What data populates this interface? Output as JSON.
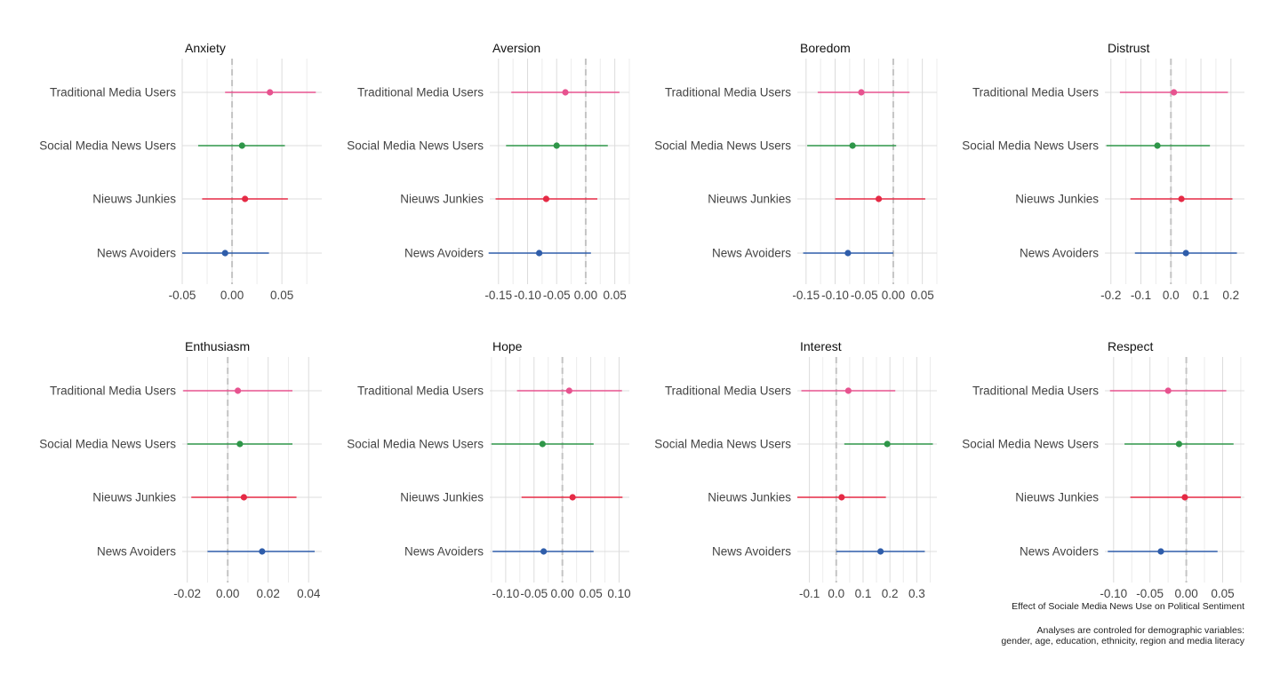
{
  "chart_data": [
    {
      "type": "forest",
      "title": "Anxiety",
      "categories": [
        "Traditional Media Users",
        "Social Media News Users",
        "Nieuws Junkies",
        "News Avoiders"
      ],
      "xlim": [
        -0.05,
        0.09
      ],
      "ticks": [
        -0.05,
        0.0,
        0.05
      ],
      "tick_labels": [
        "-0.05",
        "0.00",
        "0.05"
      ],
      "reference_line": 0,
      "points": [
        {
          "group": "Traditional Media Users",
          "estimate": 0.038,
          "lower": -0.007,
          "upper": 0.084
        },
        {
          "group": "Social Media News Users",
          "estimate": 0.01,
          "lower": -0.034,
          "upper": 0.053
        },
        {
          "group": "Nieuws Junkies",
          "estimate": 0.013,
          "lower": -0.03,
          "upper": 0.056
        },
        {
          "group": "News Avoiders",
          "estimate": -0.007,
          "lower": -0.05,
          "upper": 0.037
        }
      ]
    },
    {
      "type": "forest",
      "title": "Aversion",
      "categories": [
        "Traditional Media Users",
        "Social Media News Users",
        "Nieuws Junkies",
        "News Avoiders"
      ],
      "xlim": [
        -0.165,
        0.075
      ],
      "ticks": [
        -0.15,
        -0.1,
        -0.05,
        0.0,
        0.05
      ],
      "tick_labels": [
        "-0.15",
        "-0.10",
        "-0.05",
        "0.00",
        "0.05"
      ],
      "reference_line": 0,
      "points": [
        {
          "group": "Traditional Media Users",
          "estimate": -0.035,
          "lower": -0.128,
          "upper": 0.058
        },
        {
          "group": "Social Media News Users",
          "estimate": -0.05,
          "lower": -0.137,
          "upper": 0.038
        },
        {
          "group": "Nieuws Junkies",
          "estimate": -0.068,
          "lower": -0.155,
          "upper": 0.02
        },
        {
          "group": "News Avoiders",
          "estimate": -0.08,
          "lower": -0.167,
          "upper": 0.009
        }
      ]
    },
    {
      "type": "forest",
      "title": "Boredom",
      "categories": [
        "Traditional Media Users",
        "Social Media News Users",
        "Nieuws Junkies",
        "News Avoiders"
      ],
      "xlim": [
        -0.165,
        0.075
      ],
      "ticks": [
        -0.15,
        -0.1,
        -0.05,
        0.0,
        0.05
      ],
      "tick_labels": [
        "-0.15",
        "-0.10",
        "-0.05",
        "0.00",
        "0.05"
      ],
      "reference_line": 0,
      "points": [
        {
          "group": "Traditional Media Users",
          "estimate": -0.055,
          "lower": -0.13,
          "upper": 0.028
        },
        {
          "group": "Social Media News Users",
          "estimate": -0.07,
          "lower": -0.148,
          "upper": 0.005
        },
        {
          "group": "Nieuws Junkies",
          "estimate": -0.025,
          "lower": -0.1,
          "upper": 0.055
        },
        {
          "group": "News Avoiders",
          "estimate": -0.078,
          "lower": -0.155,
          "upper": 0.0
        }
      ]
    },
    {
      "type": "forest",
      "title": "Distrust",
      "categories": [
        "Traditional Media Users",
        "Social Media News Users",
        "Nieuws Junkies",
        "News Avoiders"
      ],
      "xlim": [
        -0.22,
        0.245
      ],
      "ticks": [
        -0.2,
        -0.1,
        0.0,
        0.1,
        0.2
      ],
      "tick_labels": [
        "-0.2",
        "-0.1",
        "0.0",
        "0.1",
        "0.2"
      ],
      "reference_line": 0,
      "points": [
        {
          "group": "Traditional Media Users",
          "estimate": 0.01,
          "lower": -0.17,
          "upper": 0.19
        },
        {
          "group": "Social Media News Users",
          "estimate": -0.045,
          "lower": -0.215,
          "upper": 0.13
        },
        {
          "group": "Nieuws Junkies",
          "estimate": 0.035,
          "lower": -0.135,
          "upper": 0.205
        },
        {
          "group": "News Avoiders",
          "estimate": 0.05,
          "lower": -0.12,
          "upper": 0.22
        }
      ]
    },
    {
      "type": "forest",
      "title": "Enthusiasm",
      "categories": [
        "Traditional Media Users",
        "Social Media News Users",
        "Nieuws Junkies",
        "News Avoiders"
      ],
      "xlim": [
        -0.0225,
        0.0465
      ],
      "ticks": [
        -0.02,
        0.0,
        0.02,
        0.04
      ],
      "tick_labels": [
        "-0.02",
        "0.00",
        "0.02",
        "0.04"
      ],
      "reference_line": 0,
      "points": [
        {
          "group": "Traditional Media Users",
          "estimate": 0.005,
          "lower": -0.022,
          "upper": 0.032
        },
        {
          "group": "Social Media News Users",
          "estimate": 0.006,
          "lower": -0.02,
          "upper": 0.032
        },
        {
          "group": "Nieuws Junkies",
          "estimate": 0.008,
          "lower": -0.018,
          "upper": 0.034
        },
        {
          "group": "News Avoiders",
          "estimate": 0.017,
          "lower": -0.01,
          "upper": 0.043
        }
      ]
    },
    {
      "type": "forest",
      "title": "Hope",
      "categories": [
        "Traditional Media Users",
        "Social Media News Users",
        "Nieuws Junkies",
        "News Avoiders"
      ],
      "xlim": [
        -0.128,
        0.118
      ],
      "ticks": [
        -0.1,
        -0.05,
        0.0,
        0.05,
        0.1
      ],
      "tick_labels": [
        "-0.10",
        "-0.05",
        "0.00",
        "0.05",
        "0.10"
      ],
      "reference_line": 0,
      "points": [
        {
          "group": "Traditional Media Users",
          "estimate": 0.012,
          "lower": -0.08,
          "upper": 0.105
        },
        {
          "group": "Social Media News Users",
          "estimate": -0.035,
          "lower": -0.125,
          "upper": 0.055
        },
        {
          "group": "Nieuws Junkies",
          "estimate": 0.018,
          "lower": -0.072,
          "upper": 0.106
        },
        {
          "group": "News Avoiders",
          "estimate": -0.033,
          "lower": -0.123,
          "upper": 0.055
        }
      ]
    },
    {
      "type": "forest",
      "title": "Interest",
      "categories": [
        "Traditional Media Users",
        "Social Media News Users",
        "Nieuws Junkies",
        "News Avoiders"
      ],
      "xlim": [
        -0.145,
        0.375
      ],
      "ticks": [
        -0.1,
        0.0,
        0.1,
        0.2,
        0.3
      ],
      "tick_labels": [
        "-0.1",
        "0.0",
        "0.1",
        "0.2",
        "0.3"
      ],
      "reference_line": 0,
      "points": [
        {
          "group": "Traditional Media Users",
          "estimate": 0.045,
          "lower": -0.13,
          "upper": 0.22
        },
        {
          "group": "Social Media News Users",
          "estimate": 0.19,
          "lower": 0.03,
          "upper": 0.36
        },
        {
          "group": "Nieuws Junkies",
          "estimate": 0.02,
          "lower": -0.145,
          "upper": 0.185
        },
        {
          "group": "News Avoiders",
          "estimate": 0.165,
          "lower": 0.0,
          "upper": 0.33
        }
      ]
    },
    {
      "type": "forest",
      "title": "Respect",
      "categories": [
        "Traditional Media Users",
        "Social Media News Users",
        "Nieuws Junkies",
        "News Avoiders"
      ],
      "xlim": [
        -0.112,
        0.08
      ],
      "ticks": [
        -0.1,
        -0.05,
        0.0,
        0.05
      ],
      "tick_labels": [
        "-0.10",
        "-0.05",
        "0.00",
        "0.05"
      ],
      "reference_line": 0,
      "points": [
        {
          "group": "Traditional Media Users",
          "estimate": -0.025,
          "lower": -0.105,
          "upper": 0.055
        },
        {
          "group": "Social Media News Users",
          "estimate": -0.01,
          "lower": -0.085,
          "upper": 0.065
        },
        {
          "group": "Nieuws Junkies",
          "estimate": -0.002,
          "lower": -0.077,
          "upper": 0.075
        },
        {
          "group": "News Avoiders",
          "estimate": -0.035,
          "lower": -0.108,
          "upper": 0.043
        }
      ]
    }
  ],
  "series_colors": {
    "Traditional Media Users": "#E7538F",
    "Social Media News Users": "#2E9648",
    "Nieuws Junkies": "#E52A45",
    "News Avoiders": "#2F5DAA"
  },
  "caption": {
    "main": "Effect of Sociale Media News Use on Political Sentiment",
    "note_line1": "Analyses are controled for demographic variables:",
    "note_line2": "gender, age, education, ethnicity, region and media literacy"
  }
}
